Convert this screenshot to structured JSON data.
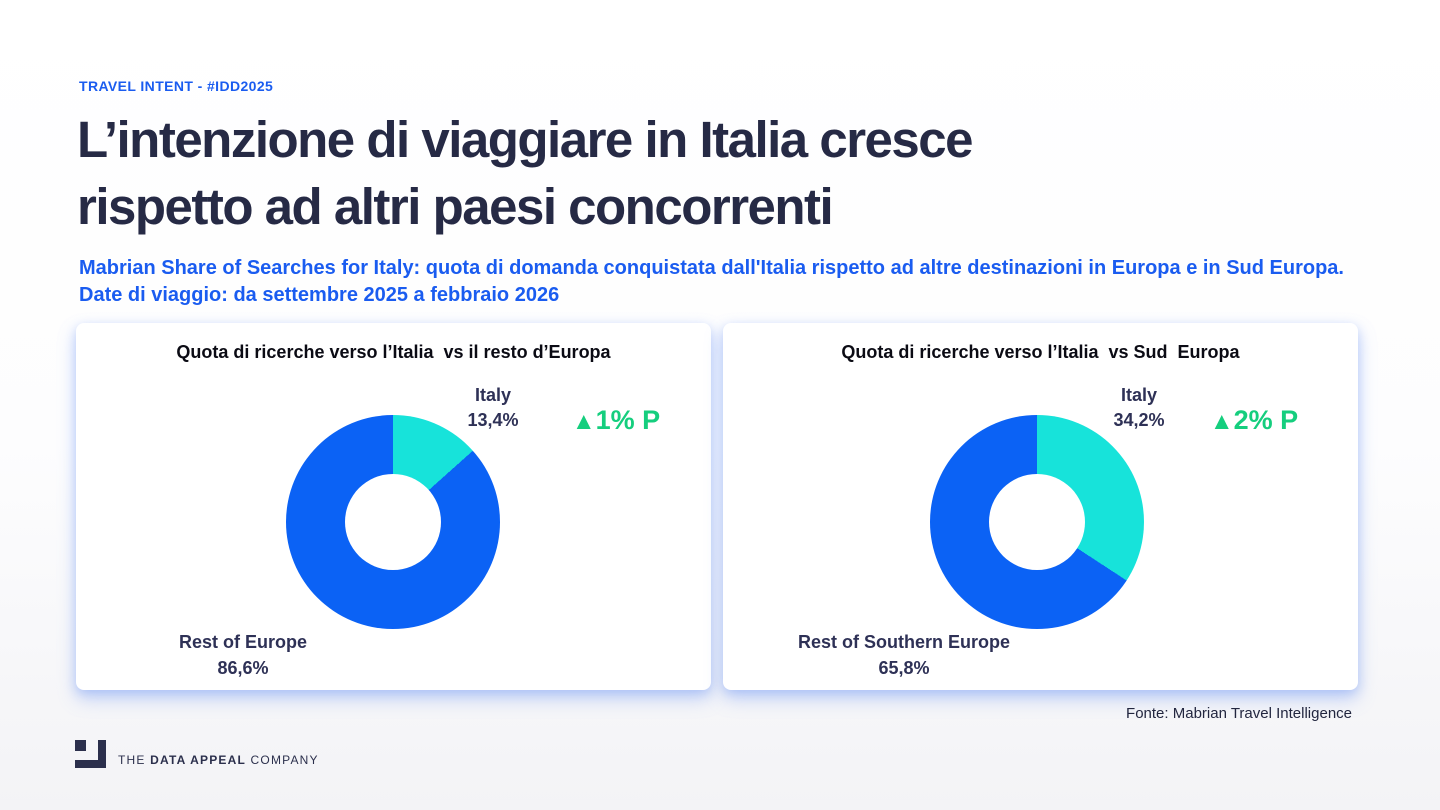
{
  "page": {
    "eyebrow": "TRAVEL INTENT - #IDD2025",
    "title_line1": "L’intenzione di viaggiare in Italia cresce",
    "title_line2": "rispetto ad altri paesi concorrenti",
    "subtitle": "Mabrian Share of Searches for Italy: quota di domanda conquistata dall'Italia rispetto ad altre destinazioni in Europa e in Sud Europa. Date di viaggio: da settembre 2025 a febbraio 2026",
    "source": "Fonte: Mabrian Travel Intelligence"
  },
  "logo": {
    "the": "THE ",
    "brand": "DATA APPEAL",
    "company": " COMPANY"
  },
  "colors": {
    "chart_blue": "#0b62f5",
    "chart_cyan": "#17e3da",
    "delta_green": "#15ce7e",
    "heading_navy": "#262a45",
    "accent_blue": "#1a5cf0"
  },
  "chart_data": [
    {
      "type": "pie",
      "donut": true,
      "title": "Quota di ricerche verso l’Italia  vs il resto d’Europa",
      "slices": [
        {
          "label": "Italy",
          "value_pct": 13.4,
          "display": "13,4%",
          "color": "#17e3da"
        },
        {
          "label": "Rest of Europe",
          "value_pct": 86.6,
          "display": "86,6%",
          "color": "#0b62f5"
        }
      ],
      "delta": {
        "arrow": "▲",
        "label": "1% P"
      },
      "legend_position": "callout-labels",
      "start_angle_deg": 0,
      "direction": "clockwise"
    },
    {
      "type": "pie",
      "donut": true,
      "title": "Quota di ricerche verso l’Italia  vs Sud  Europa",
      "slices": [
        {
          "label": "Italy",
          "value_pct": 34.2,
          "display": "34,2%",
          "color": "#17e3da"
        },
        {
          "label": "Rest of Southern Europe",
          "value_pct": 65.8,
          "display": "65,8%",
          "color": "#0b62f5"
        }
      ],
      "delta": {
        "arrow": "▲",
        "label": "2% P"
      },
      "legend_position": "callout-labels",
      "start_angle_deg": 0,
      "direction": "clockwise"
    }
  ]
}
